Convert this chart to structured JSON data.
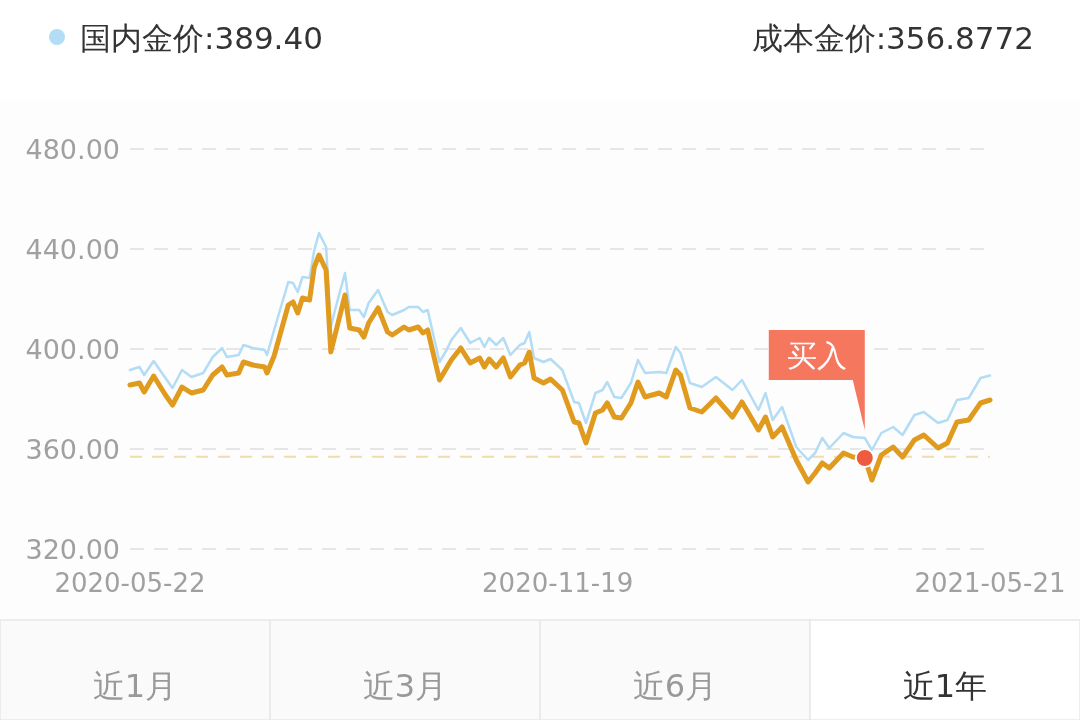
{
  "chart_data": {
    "type": "line",
    "x": [
      "2020-05-22",
      "2020-05-26",
      "2020-05-28",
      "2020-06-01",
      "2020-06-06",
      "2020-06-09",
      "2020-06-13",
      "2020-06-17",
      "2020-06-22",
      "2020-06-26",
      "2020-06-30",
      "2020-07-02",
      "2020-07-07",
      "2020-07-09",
      "2020-07-13",
      "2020-07-18",
      "2020-07-19",
      "2020-07-22",
      "2020-07-28",
      "2020-07-30",
      "2020-08-01",
      "2020-08-03",
      "2020-08-06",
      "2020-08-08",
      "2020-08-10",
      "2020-08-13",
      "2020-08-15",
      "2020-08-17",
      "2020-08-21",
      "2020-08-23",
      "2020-08-27",
      "2020-08-29",
      "2020-08-31",
      "2020-09-04",
      "2020-09-08",
      "2020-09-10",
      "2020-09-15",
      "2020-09-17",
      "2020-09-21",
      "2020-09-23",
      "2020-09-25",
      "2020-09-30",
      "2020-10-03",
      "2020-10-05",
      "2020-10-09",
      "2020-10-13",
      "2020-10-17",
      "2020-10-19",
      "2020-10-21",
      "2020-10-24",
      "2020-10-27",
      "2020-10-30",
      "2020-11-03",
      "2020-11-05",
      "2020-11-07",
      "2020-11-09",
      "2020-11-13",
      "2020-11-16",
      "2020-11-21",
      "2020-11-26",
      "2020-11-28",
      "2020-12-01",
      "2020-12-05",
      "2020-12-08",
      "2020-12-10",
      "2020-12-13",
      "2020-12-16",
      "2020-12-20",
      "2020-12-23",
      "2020-12-26",
      "2021-01-01",
      "2021-01-04",
      "2021-01-08",
      "2021-01-10",
      "2021-01-14",
      "2021-01-19",
      "2021-01-25",
      "2021-02-01",
      "2021-02-05",
      "2021-02-12",
      "2021-02-15",
      "2021-02-18",
      "2021-02-22",
      "2021-02-28",
      "2021-03-05",
      "2021-03-08",
      "2021-03-11",
      "2021-03-14",
      "2021-03-20",
      "2021-03-24",
      "2021-03-29",
      "2021-04-01",
      "2021-04-05",
      "2021-04-10",
      "2021-04-14",
      "2021-04-19",
      "2021-04-23",
      "2021-04-29",
      "2021-05-03",
      "2021-05-07",
      "2021-05-12",
      "2021-05-17",
      "2021-05-21"
    ],
    "series": [
      {
        "color": "#b3dcf5",
        "values": [
          391.6,
          392.8,
          389.6,
          395.2,
          388.4,
          384.4,
          391.6,
          388.8,
          390.4,
          396.8,
          400.4,
          396.8,
          397.6,
          401.6,
          400.4,
          399.6,
          397.6,
          407.6,
          426.8,
          426.4,
          422.8,
          428.8,
          428.4,
          439.6,
          446.4,
          440.8,
          408.8,
          416.4,
          430.4,
          415.6,
          415.6,
          412.8,
          418.4,
          423.6,
          414.8,
          413.6,
          415.6,
          416.8,
          416.8,
          414.8,
          415.6,
          394.8,
          399.6,
          403.6,
          408.4,
          402.4,
          404.4,
          400.8,
          404.4,
          401.6,
          404.4,
          397.6,
          401.6,
          402.4,
          406.8,
          396.4,
          394.8,
          396.0,
          391.6,
          378.8,
          378.4,
          370.4,
          382.4,
          383.6,
          386.8,
          380.8,
          380.4,
          386.4,
          395.6,
          390.4,
          390.8,
          390.4,
          400.8,
          398.4,
          386.4,
          384.8,
          388.8,
          383.6,
          387.6,
          375.6,
          382.4,
          371.6,
          376.8,
          360.8,
          355.6,
          358.4,
          364.4,
          360.4,
          366.4,
          364.8,
          364.4,
          359.6,
          366.4,
          368.8,
          365.6,
          373.6,
          374.8,
          370.4,
          371.6,
          379.6,
          380.4,
          388.4,
          389.4
        ]
      },
      {
        "color": "#e09b1f",
        "values": [
          385.6,
          386.4,
          382.8,
          389.2,
          381.6,
          377.6,
          384.8,
          382.4,
          383.6,
          389.6,
          392.8,
          389.6,
          390.4,
          394.8,
          393.6,
          392.8,
          390.4,
          397.2,
          417.6,
          418.8,
          414.4,
          420.4,
          419.6,
          432.8,
          437.6,
          431.6,
          398.8,
          406.4,
          421.6,
          408.4,
          407.6,
          404.8,
          410.4,
          416.4,
          406.8,
          405.6,
          408.8,
          407.6,
          408.8,
          406.4,
          407.6,
          387.6,
          392.4,
          395.6,
          400.4,
          394.4,
          396.4,
          392.8,
          396.0,
          392.8,
          396.4,
          388.8,
          393.6,
          394.4,
          398.8,
          388.4,
          386.4,
          388.0,
          383.6,
          370.8,
          370.4,
          362.4,
          374.4,
          375.6,
          378.4,
          372.8,
          372.4,
          378.4,
          386.8,
          380.8,
          382.4,
          380.8,
          391.6,
          389.6,
          376.4,
          374.8,
          380.4,
          372.8,
          378.8,
          367.6,
          372.8,
          364.8,
          368.8,
          355.6,
          346.8,
          350.4,
          354.4,
          352.4,
          358.4,
          356.8,
          356.4,
          347.6,
          357.6,
          360.8,
          356.8,
          363.6,
          365.6,
          360.4,
          362.4,
          370.8,
          371.6,
          378.4,
          379.6
        ]
      }
    ],
    "xlim": [
      "2020-05-22",
      "2021-05-21"
    ],
    "xticks": [
      "2020-05-22",
      "2020-11-19",
      "2021-05-21"
    ],
    "ylim": [
      320,
      480
    ],
    "yticks": [
      {
        "value": 320,
        "label": "320.00"
      },
      {
        "value": 360,
        "label": "360.00"
      },
      {
        "value": 400,
        "label": "400.00"
      },
      {
        "value": 440,
        "label": "440.00"
      },
      {
        "value": 480,
        "label": "480.00"
      }
    ],
    "grid": "y",
    "line_style": "solid",
    "ref_lines": [
      {
        "axis": "y",
        "value": 356.8772,
        "color": "#f2dcae",
        "line_style": "dashed"
      }
    ],
    "annotations": [
      "国内金价:389.40",
      "成本金价:356.8772",
      {
        "text": "买入",
        "x": "2021-03-29",
        "y": 356.4
      },
      "近1月",
      "近3月",
      "近6月",
      "近1年"
    ]
  }
}
